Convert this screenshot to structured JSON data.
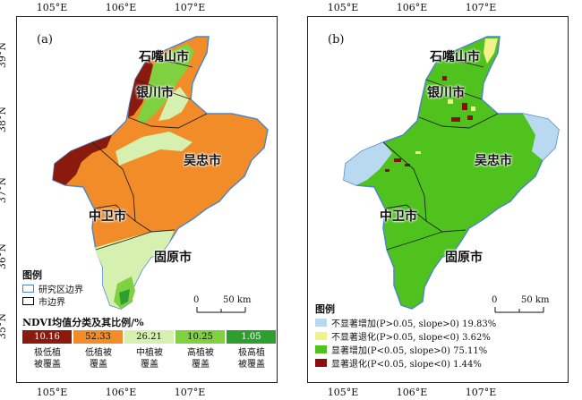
{
  "axes": {
    "lon_ticks": [
      "105°E",
      "106°E",
      "107°E"
    ],
    "lat_ticks": [
      "39°N",
      "38°N",
      "37°N",
      "36°N",
      "35°N"
    ]
  },
  "cities": [
    "石嘴山市",
    "银川市",
    "吴忠市",
    "中卫市",
    "固原市"
  ],
  "scale": {
    "zero": "0",
    "distance": "50 km"
  },
  "panel_a": {
    "label": "(a)",
    "legend_title": "图例",
    "boundary_items": [
      "研究区边界",
      "市边界"
    ],
    "class_title": "NDVI均值分类及其比例/%",
    "classes": [
      {
        "value": "10.16",
        "name_line1": "极低植",
        "name_line2": "被覆盖",
        "color": "#8b1a0e"
      },
      {
        "value": "52.33",
        "name_line1": "低植被",
        "name_line2": "覆盖",
        "color": "#f28c28"
      },
      {
        "value": "26.21",
        "name_line1": "中植被",
        "name_line2": "覆盖",
        "color": "#d6f0b0"
      },
      {
        "value": "10.25",
        "name_line1": "高植被",
        "name_line2": "覆盖",
        "color": "#7fd13f"
      },
      {
        "value": "1.05",
        "name_line1": "极高植",
        "name_line2": "被覆盖",
        "color": "#2e9e2e"
      }
    ]
  },
  "panel_b": {
    "label": "(b)",
    "legend_title": "图例",
    "items": [
      {
        "label": "不显著增加(P>0.05, slope>0) 19.83%",
        "color": "#b9d9f0"
      },
      {
        "label": "不显著退化(P>0.05, slope<0) 3.62%",
        "color": "#f2f28a"
      },
      {
        "label": "显著增加(P<0.05, slope>0) 75.11%",
        "color": "#4fc21e"
      },
      {
        "label": "显著退化(P<0.05, slope<0) 1.44%",
        "color": "#8b0d0d"
      }
    ]
  }
}
